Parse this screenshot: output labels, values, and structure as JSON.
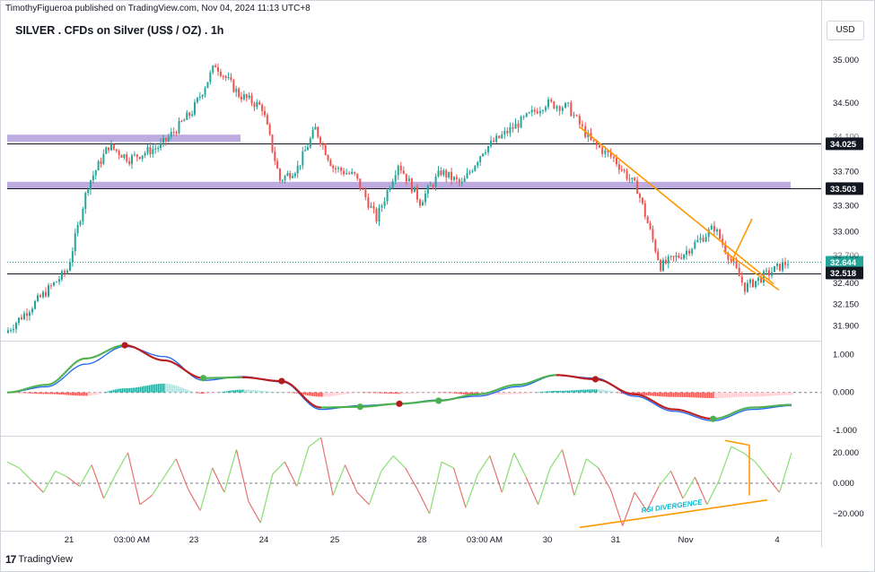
{
  "header": {
    "publisher": "TimothyFigueroa published on TradingView.com, Nov 04, 2024 11:13 UTC+8",
    "title": "SILVER . CFDs on Silver (US$ / OZ) . 1h",
    "currency": "USD"
  },
  "footer": {
    "logo_mark": "17",
    "logo_text": "TradingView"
  },
  "colors": {
    "up": "#26a69a",
    "down": "#ef5350",
    "zone": "#b39ddb",
    "trend": "#ff9800",
    "macd": "#1e66f5",
    "signal_up": "#4caf50",
    "signal_down": "#b71c1c",
    "rsi_up": "#8bde74",
    "rsi_down": "#e57373",
    "annotation": "#00bcd4"
  },
  "chart_data": [
    {
      "type": "candlestick",
      "pane": "price",
      "ylim": [
        31.75,
        35.2
      ],
      "y_ticks": [
        31.9,
        32.15,
        32.4,
        33.0,
        33.3,
        33.7,
        34.5,
        35.0
      ],
      "y_tick_labels": [
        "31.900",
        "32.150",
        "32.400",
        "33.000",
        "33.300",
        "33.700",
        "34.500",
        "35.000"
      ],
      "price_tags": [
        {
          "value": 34.025,
          "label": "34.025",
          "style": "black-line"
        },
        {
          "value": 33.503,
          "label": "33.503",
          "style": "black-line"
        },
        {
          "value": 32.644,
          "label": "32.644",
          "style": "last-price"
        },
        {
          "value": 32.518,
          "label": "32.518",
          "style": "black-line"
        }
      ],
      "partial_tick_labels": [
        "34.100",
        "32.700"
      ],
      "resistance_zones": [
        {
          "from_date": "Oct 20",
          "to_date": "Oct 23",
          "value": 34.09
        },
        {
          "from_date": "Oct 20",
          "to_date": "Nov 4",
          "value": 33.54
        }
      ],
      "horizontal_lines": [
        34.025,
        33.503,
        32.518
      ],
      "x_tick_labels": [
        "21",
        "03:00 AM",
        "23",
        "24",
        "25",
        "28",
        "03:00 AM",
        "30",
        "31",
        "Nov",
        "4"
      ],
      "close_path": [
        [
          "Oct 20",
          31.82
        ],
        [
          "Oct 21",
          32.55
        ],
        [
          "Oct 21",
          33.55
        ],
        [
          "Oct 21",
          34.0
        ],
        [
          "Oct 22",
          33.85
        ],
        [
          "Oct 22",
          34.0
        ],
        [
          "Oct 23",
          34.4
        ],
        [
          "Oct 23",
          34.95
        ],
        [
          "Oct 23",
          34.6
        ],
        [
          "Oct 24",
          34.45
        ],
        [
          "Oct 24",
          33.6
        ],
        [
          "Oct 24",
          33.75
        ],
        [
          "Oct 24",
          34.2
        ],
        [
          "Oct 25",
          33.75
        ],
        [
          "Oct 25",
          33.65
        ],
        [
          "Oct 25",
          33.15
        ],
        [
          "Oct 25",
          33.8
        ],
        [
          "Oct 28",
          33.35
        ],
        [
          "Oct 28",
          33.7
        ],
        [
          "Oct 28",
          33.55
        ],
        [
          "Oct 29",
          33.95
        ],
        [
          "Oct 30",
          34.5
        ],
        [
          "Oct 30",
          34.45
        ],
        [
          "Oct 30",
          34.05
        ],
        [
          "Oct 31",
          33.85
        ],
        [
          "Oct 31",
          33.5
        ],
        [
          "Oct 31",
          32.6
        ],
        [
          "Nov 1",
          32.75
        ],
        [
          "Nov 1",
          33.05
        ],
        [
          "Nov 1",
          32.35
        ],
        [
          "Nov 4",
          32.65
        ]
      ],
      "trendlines": [
        {
          "points": [
            [
              "Oct 30",
              34.22
            ],
            [
              "Nov 1",
              32.39
            ]
          ]
        },
        {
          "points": [
            [
              "Nov 1",
              32.65
            ],
            [
              "Nov 1",
              33.15
            ]
          ]
        },
        {
          "points": [
            [
              "Nov 1",
              32.65
            ],
            [
              "Nov 1",
              32.32
            ]
          ]
        }
      ]
    },
    {
      "type": "macd",
      "pane": "macd",
      "ylim": [
        -1.1,
        1.3
      ],
      "y_ticks": [
        1.0,
        0.0,
        -1.0
      ],
      "y_tick_labels": [
        "1.000",
        "0.000",
        "-1.000"
      ],
      "macd_line": [
        0.0,
        0.15,
        0.75,
        1.22,
        0.95,
        0.32,
        0.42,
        0.28,
        -0.45,
        -0.35,
        -0.3,
        -0.2,
        -0.1,
        0.15,
        0.45,
        0.38,
        -0.1,
        -0.5,
        -0.75,
        -0.45,
        -0.35
      ],
      "signal_line": [
        0.0,
        0.2,
        0.9,
        1.25,
        0.85,
        0.38,
        0.4,
        0.3,
        -0.4,
        -0.38,
        -0.3,
        -0.22,
        -0.05,
        0.2,
        0.46,
        0.35,
        -0.05,
        -0.45,
        -0.7,
        -0.4,
        -0.33
      ],
      "cross_markers": [
        {
          "index": 3,
          "direction": "down"
        },
        {
          "index": 5,
          "direction": "up"
        },
        {
          "index": 7,
          "direction": "down"
        },
        {
          "index": 9,
          "direction": "up"
        },
        {
          "index": 10,
          "direction": "down"
        },
        {
          "index": 11,
          "direction": "up"
        },
        {
          "index": 15,
          "direction": "down"
        },
        {
          "index": 18,
          "direction": "up"
        }
      ]
    },
    {
      "type": "rsi_histogram",
      "pane": "rsi",
      "ylim": [
        -30,
        30
      ],
      "y_ticks": [
        20.0,
        0.0,
        -20.0
      ],
      "y_tick_labels": [
        "20.000",
        "0.000",
        "−20.000"
      ],
      "values": [
        14,
        10,
        2,
        -6,
        8,
        4,
        -2,
        12,
        -10,
        6,
        20,
        -14,
        -8,
        4,
        16,
        -4,
        -18,
        10,
        -6,
        22,
        -12,
        -26,
        6,
        14,
        -2,
        24,
        30,
        -8,
        12,
        -6,
        -14,
        8,
        18,
        10,
        -4,
        -20,
        14,
        10,
        -16,
        6,
        18,
        -6,
        20,
        4,
        -14,
        10,
        22,
        -8,
        16,
        10,
        -4,
        -28,
        -6,
        -18,
        -2,
        8,
        -10,
        4,
        -14,
        2,
        24,
        20,
        14,
        4,
        -6,
        20
      ],
      "divergence_label": "RSI DIVERGENCE",
      "divergence_lines": [
        {
          "points": [
            [
              "Oct 30",
              -29
            ],
            [
              "Nov 1",
              -12
            ]
          ]
        },
        {
          "points": [
            [
              "Nov 1",
              28
            ],
            [
              "Nov 1",
              25
            ]
          ]
        }
      ]
    }
  ]
}
